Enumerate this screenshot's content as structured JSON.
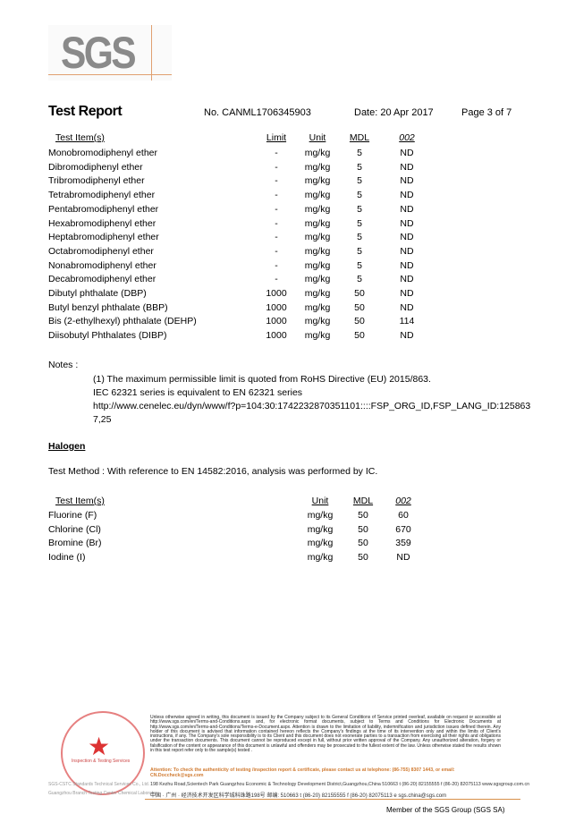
{
  "logo": "SGS",
  "header": {
    "title": "Test Report",
    "number": "No. CANML1706345903",
    "date": "Date: 20 Apr 2017",
    "page": "Page 3 of 7"
  },
  "table1": {
    "headers": [
      "Test Item(s)",
      "Limit",
      "Unit",
      "MDL",
      "002"
    ],
    "rows": [
      [
        "Monobromodiphenyl ether",
        "-",
        "mg/kg",
        "5",
        "ND"
      ],
      [
        "Dibromodiphenyl ether",
        "-",
        "mg/kg",
        "5",
        "ND"
      ],
      [
        "Tribromodiphenyl ether",
        "-",
        "mg/kg",
        "5",
        "ND"
      ],
      [
        "Tetrabromodiphenyl ether",
        "-",
        "mg/kg",
        "5",
        "ND"
      ],
      [
        "Pentabromodiphenyl ether",
        "-",
        "mg/kg",
        "5",
        "ND"
      ],
      [
        "Hexabromodiphenyl ether",
        "-",
        "mg/kg",
        "5",
        "ND"
      ],
      [
        "Heptabromodiphenyl ether",
        "-",
        "mg/kg",
        "5",
        "ND"
      ],
      [
        "Octabromodiphenyl ether",
        "-",
        "mg/kg",
        "5",
        "ND"
      ],
      [
        "Nonabromodiphenyl ether",
        "-",
        "mg/kg",
        "5",
        "ND"
      ],
      [
        "Decabromodiphenyl ether",
        "-",
        "mg/kg",
        "5",
        "ND"
      ],
      [
        "Dibutyl phthalate (DBP)",
        "1000",
        "mg/kg",
        "50",
        "ND"
      ],
      [
        "Butyl benzyl phthalate (BBP)",
        "1000",
        "mg/kg",
        "50",
        "ND"
      ],
      [
        "Bis (2-ethylhexyl) phthalate (DEHP)",
        "1000",
        "mg/kg",
        "50",
        "114"
      ],
      [
        "Diisobutyl Phthalates (DIBP)",
        "1000",
        "mg/kg",
        "50",
        "ND"
      ]
    ]
  },
  "notes": {
    "label": "Notes :",
    "lines": [
      "(1) The maximum permissible limit is quoted from RoHS Directive (EU) 2015/863.",
      "IEC 62321 series is equivalent to EN 62321 series",
      "http://www.cenelec.eu/dyn/www/f?p=104:30:1742232870351101::::FSP_ORG_ID,FSP_LANG_ID:125863",
      "7,25"
    ]
  },
  "halogen": {
    "heading": "Halogen",
    "method": "Test Method :   With reference to EN 14582:2016, analysis was performed by IC.",
    "headers": [
      "Test Item(s)",
      "Unit",
      "MDL",
      "002"
    ],
    "rows": [
      [
        "Fluorine (F)",
        "mg/kg",
        "50",
        "60"
      ],
      [
        "Chlorine (Cl)",
        "mg/kg",
        "50",
        "670"
      ],
      [
        "Bromine (Br)",
        "mg/kg",
        "50",
        "359"
      ],
      [
        "Iodine (I)",
        "mg/kg",
        "50",
        "ND"
      ]
    ]
  },
  "footer": {
    "disclaimer": "Unless otherwise agreed in writing, this document is issued by the Company subject to its General Conditions of Service printed overleaf, available on request or accessible at http://www.sgs.com/en/Terms-and-Conditions.aspx and, for electronic format documents, subject to Terms and Conditions for Electronic Documents at http://www.sgs.com/en/Terms-and-Conditions/Terms-e-Document.aspx. Attention is drawn to the limitation of liability, indemnification and jurisdiction issues defined therein. Any holder of this document is advised that information contained hereon reflects the Company's findings at the time of its intervention only and within the limits of Client's instructions, if any. The Company's sole responsibility is to its Client and this document does not exonerate parties to a transaction from exercising all their rights and obligations under the transaction documents. This document cannot be reproduced except in full, without prior written approval of the Company. Any unauthorized alteration, forgery or falsification of the content or appearance of this document is unlawful and offenders may be prosecuted to the fullest extent of the law. Unless otherwise stated the results shown in this test report refer only to the sample(s) tested .",
    "attention": "Attention: To check the authenticity of testing /inspection report & certificate, please contact us at telephone: (86-755) 8307 1443, or email: CN.Doccheck@sgs.com",
    "address_en": "198 Kezhu Road,Scientech Park Guangzhou Economic & Technology Development District,Guangzhou,China  510663   t (86-20) 82155555   f (86-20) 82075113   www.sgsgroup.com.cn",
    "address_cn": "中国 · 广州 · 经济技术开发区科学城科珠路198号        邮编: 510663   t (86-20) 82155555   f (86-20) 82075113   e  sgs.china@sgs.com",
    "left_en1": "SGS-CSTC Standards Technical Services Co., Ltd.",
    "left_en2": "Guangzhou Branch Testing Center Chemical Laboratory",
    "stamp_text": "Inspection & Testing Services",
    "member": "Member of the SGS Group (SGS SA)"
  }
}
